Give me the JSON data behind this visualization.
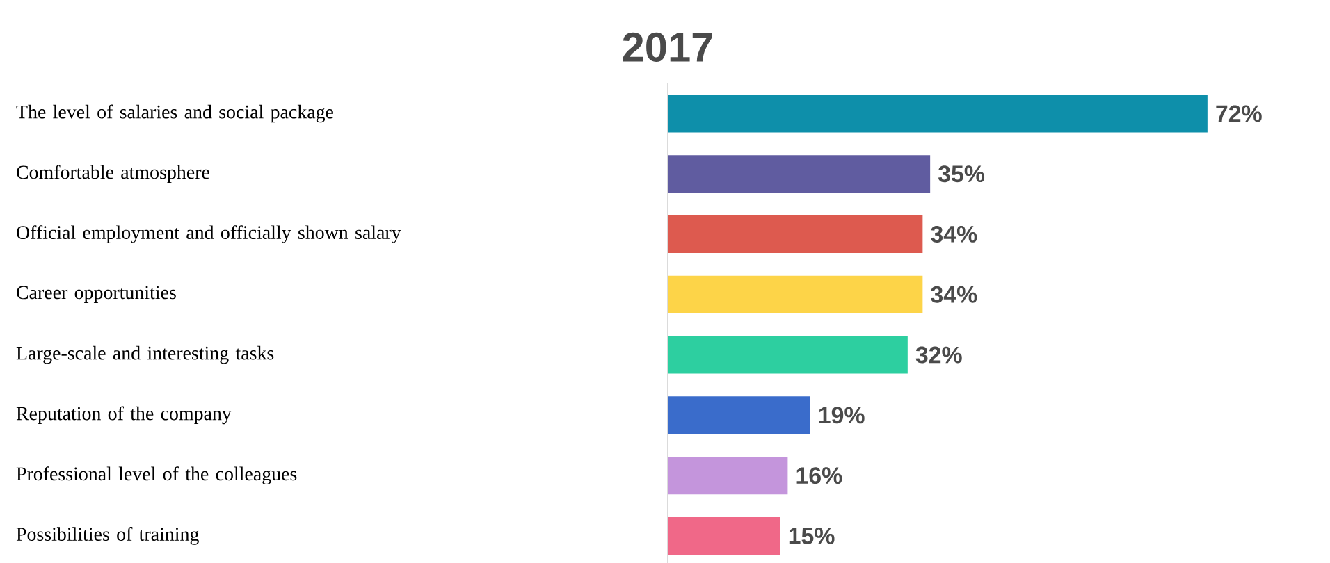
{
  "chart_data": {
    "type": "bar",
    "orientation": "horizontal",
    "title": "2017",
    "categories": [
      "The level of salaries and social package",
      "Comfortable atmosphere",
      "Official employment and officially shown salary",
      "Career opportunities",
      "Large-scale and interesting tasks",
      "Reputation of the company",
      "Professional level of the colleagues",
      "Possibilities of training"
    ],
    "values": [
      72,
      35,
      34,
      34,
      32,
      19,
      16,
      15
    ],
    "value_labels": [
      "72%",
      "35%",
      "34%",
      "34%",
      "32%",
      "19%",
      "16%",
      "15%"
    ],
    "colors": [
      "#0e8faa",
      "#605ca0",
      "#dd5a4f",
      "#fdd448",
      "#2dcfa0",
      "#3a6ccb",
      "#c495dc",
      "#f06888"
    ]
  }
}
